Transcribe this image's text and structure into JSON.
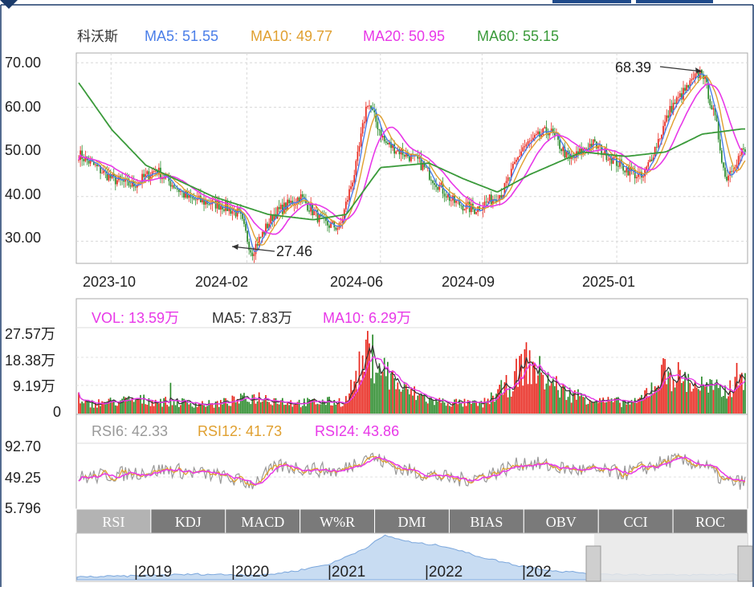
{
  "chart_data": [
    {
      "type": "candlestick",
      "stock_name": "科沃斯",
      "indicators": [
        {
          "label": "MA5: 51.55",
          "color": "#4a7ee8"
        },
        {
          "label": "MA10: 49.77",
          "color": "#e0a030"
        },
        {
          "label": "MA20: 50.95",
          "color": "#e838e8"
        },
        {
          "label": "MA60: 55.15",
          "color": "#3a9a3a"
        }
      ],
      "y_ticks": [
        "70.00",
        "60.00",
        "50.00",
        "40.00",
        "30.00"
      ],
      "ylim": [
        25.2,
        72.0
      ],
      "x_ticks": [
        "2023-10",
        "2024-02",
        "2024-06",
        "2024-09",
        "2025-01"
      ],
      "annotations": [
        {
          "label": "68.39",
          "value": 68.39
        },
        {
          "label": "27.46",
          "value": 27.46
        }
      ],
      "price_path": [
        [
          "2023-09-01",
          49.5
        ],
        [
          "2023-10-01",
          44.0
        ],
        [
          "2023-10-20",
          42.5
        ],
        [
          "2023-11-10",
          46.0
        ],
        [
          "2023-12-10",
          39.5
        ],
        [
          "2024-01-10",
          38.0
        ],
        [
          "2024-01-25",
          36.0
        ],
        [
          "2024-02-05",
          27.46
        ],
        [
          "2024-02-25",
          36.0
        ],
        [
          "2024-03-20",
          40.0
        ],
        [
          "2024-04-10",
          34.0
        ],
        [
          "2024-04-25",
          33.0
        ],
        [
          "2024-05-10",
          47.0
        ],
        [
          "2024-05-20",
          61.5
        ],
        [
          "2024-06-05",
          52.0
        ],
        [
          "2024-07-05",
          48.0
        ],
        [
          "2024-08-05",
          39.0
        ],
        [
          "2024-08-25",
          37.0
        ],
        [
          "2024-09-20",
          41.0
        ],
        [
          "2024-10-08",
          51.0
        ],
        [
          "2024-11-01",
          55.0
        ],
        [
          "2024-11-20",
          48.0
        ],
        [
          "2024-12-10",
          52.0
        ],
        [
          "2025-01-05",
          47.0
        ],
        [
          "2025-01-25",
          44.0
        ],
        [
          "2025-02-20",
          60.0
        ],
        [
          "2025-03-20",
          68.39
        ],
        [
          "2025-04-02",
          56.0
        ],
        [
          "2025-04-10",
          44.0
        ],
        [
          "2025-04-25",
          50.0
        ]
      ],
      "ma60_path": [
        [
          "2023-09-01",
          65.5
        ],
        [
          "2023-10-01",
          55.0
        ],
        [
          "2023-11-01",
          47.0
        ],
        [
          "2024-01-01",
          40.0
        ],
        [
          "2024-02-20",
          36.0
        ],
        [
          "2024-04-01",
          34.8
        ],
        [
          "2024-05-01",
          36.0
        ],
        [
          "2024-06-01",
          46.5
        ],
        [
          "2024-07-15",
          47.5
        ],
        [
          "2024-08-15",
          44.0
        ],
        [
          "2024-09-15",
          41.0
        ],
        [
          "2024-10-15",
          45.0
        ],
        [
          "2024-12-01",
          50.0
        ],
        [
          "2025-01-10",
          49.0
        ],
        [
          "2025-02-15",
          50.0
        ],
        [
          "2025-03-20",
          54.0
        ],
        [
          "2025-04-25",
          55.15
        ]
      ]
    },
    {
      "type": "bar",
      "indicators": [
        {
          "label": "VOL: 13.59万",
          "color": "#e838e8"
        },
        {
          "label": "MA5: 7.83万",
          "color": "#333333"
        },
        {
          "label": "MA10: 6.29万",
          "color": "#e838e8"
        }
      ],
      "y_ticks": [
        "27.57万",
        "18.38万",
        "9.19万",
        "0"
      ],
      "ylim": [
        0,
        27.57
      ],
      "volume_path": [
        [
          "2023-09-01",
          3.0
        ],
        [
          "2023-10-25",
          4.5
        ],
        [
          "2024-01-01",
          3.0
        ],
        [
          "2024-02-10",
          5.5
        ],
        [
          "2024-03-15",
          3.5
        ],
        [
          "2024-04-30",
          4.0
        ],
        [
          "2024-05-15",
          16.0
        ],
        [
          "2024-05-25",
          18.5
        ],
        [
          "2024-06-20",
          8.0
        ],
        [
          "2024-07-20",
          4.0
        ],
        [
          "2024-09-01",
          3.0
        ],
        [
          "2024-09-28",
          10.0
        ],
        [
          "2024-10-10",
          17.0
        ],
        [
          "2024-11-15",
          7.0
        ],
        [
          "2024-12-20",
          4.0
        ],
        [
          "2025-01-20",
          3.5
        ],
        [
          "2025-02-15",
          14.0
        ],
        [
          "2025-03-10",
          10.0
        ],
        [
          "2025-04-10",
          7.0
        ],
        [
          "2025-04-25",
          13.59
        ]
      ]
    },
    {
      "type": "line",
      "indicators": [
        {
          "label": "RSI6: 42.33",
          "color": "#999999"
        },
        {
          "label": "RSI12: 41.73",
          "color": "#e0a030"
        },
        {
          "label": "RSI24: 43.86",
          "color": "#e838e8"
        }
      ],
      "y_ticks": [
        "92.70",
        "49.25",
        "5.796"
      ],
      "ylim": [
        5.796,
        92.7
      ],
      "rsi_path": [
        [
          "2023-09-01",
          48
        ],
        [
          "2023-10-20",
          55
        ],
        [
          "2023-11-20",
          60
        ],
        [
          "2024-01-01",
          52
        ],
        [
          "2024-02-05",
          40
        ],
        [
          "2024-03-01",
          65
        ],
        [
          "2024-04-25",
          57
        ],
        [
          "2024-05-20",
          80
        ],
        [
          "2024-06-20",
          60
        ],
        [
          "2024-08-10",
          45
        ],
        [
          "2024-09-01",
          50
        ],
        [
          "2024-10-10",
          70
        ],
        [
          "2024-11-20",
          60
        ],
        [
          "2025-01-10",
          55
        ],
        [
          "2025-02-20",
          73
        ],
        [
          "2025-03-20",
          68
        ],
        [
          "2025-04-10",
          42
        ],
        [
          "2025-04-25",
          42
        ]
      ]
    }
  ],
  "tabs": [
    "RSI",
    "KDJ",
    "MACD",
    "W%R",
    "DMI",
    "BIAS",
    "OBV",
    "CCI",
    "ROC"
  ],
  "active_tab": "RSI",
  "navigator": {
    "years": [
      "|2019",
      "|2020",
      "|2021",
      "|2022",
      "|202"
    ]
  }
}
